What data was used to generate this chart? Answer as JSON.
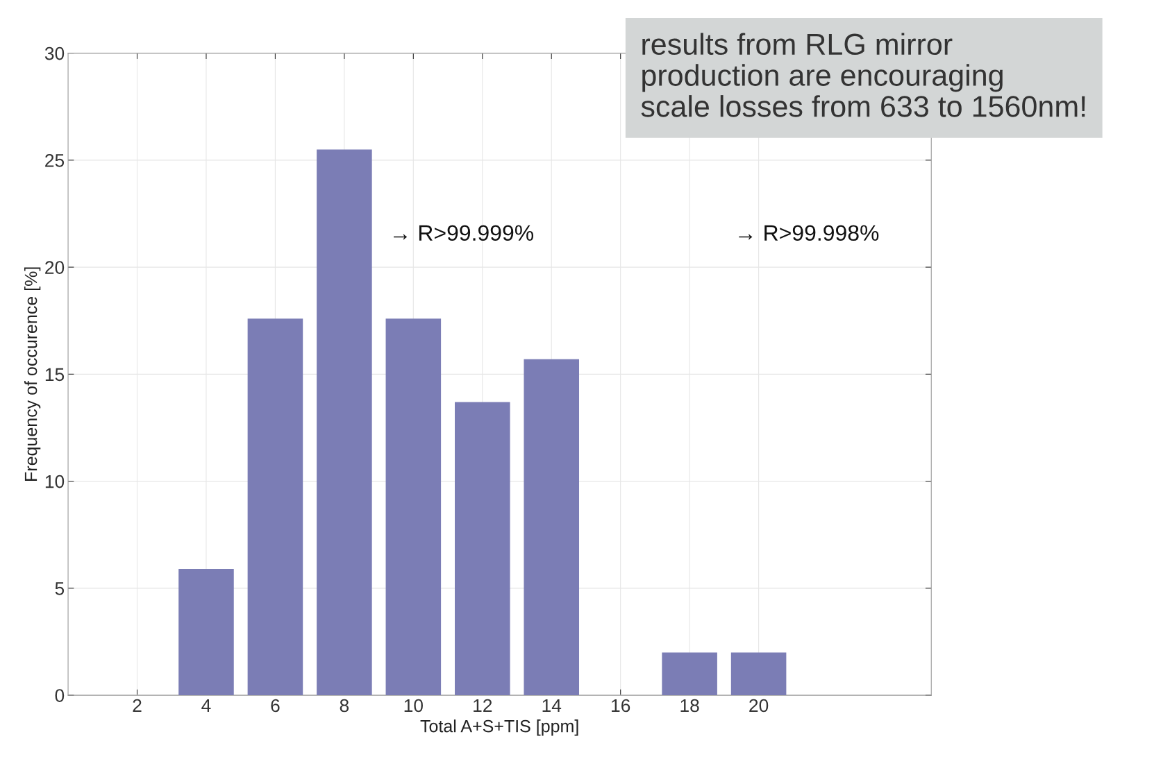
{
  "chart_data": {
    "type": "bar",
    "xlabel": "Total A+S+TIS [ppm]",
    "ylabel": "Frequency of occurence [%]",
    "x": [
      2,
      4,
      6,
      8,
      10,
      12,
      14,
      16,
      18,
      20
    ],
    "values": [
      0,
      5.9,
      17.6,
      25.5,
      17.6,
      13.7,
      15.7,
      0,
      2,
      2
    ],
    "color": "#7b7db5",
    "xlim": [
      0,
      25
    ],
    "xticks": [
      2,
      4,
      6,
      8,
      10,
      12,
      14,
      16,
      18,
      20
    ],
    "ylim": [
      0,
      30
    ],
    "yticks": [
      0,
      5,
      10,
      15,
      20,
      25,
      30
    ],
    "grid": true,
    "annotations": [
      "→ R>99.999%",
      "→ R>99.998%",
      "results from RLG mirror\nproduction are encouraging\nscale losses from 633 to 1560nm!"
    ]
  }
}
